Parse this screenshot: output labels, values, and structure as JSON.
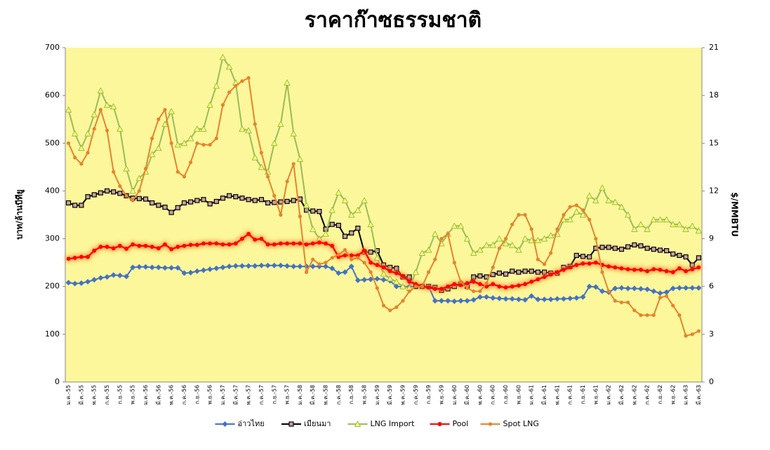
{
  "chart_data": {
    "type": "line",
    "title": "ราคาก๊าซธรรมชาติ",
    "y_label": "บาท/ล้านบีทียู",
    "y2_label": "$/MMBTU",
    "categories": [
      "ม.ค.-55",
      null,
      "มี.ค.-55",
      null,
      "พ.ค.-55",
      null,
      "ก.ค.-55",
      null,
      "ก.ย.-55",
      null,
      "พ.ย.-55",
      null,
      "ม.ค.-56",
      null,
      "มี.ค.-56",
      null,
      "พ.ค.-56",
      null,
      "ก.ค.-56",
      null,
      "ก.ย.-56",
      null,
      "พ.ย.-56",
      null,
      "ม.ค.-57",
      null,
      "มี.ค.-57",
      null,
      "พ.ค.-57",
      null,
      "ก.ค.-57",
      null,
      "ก.ย.-57",
      null,
      "พ.ย.-57",
      null,
      "ม.ค.-58",
      null,
      "มี.ค.-58",
      null,
      "พ.ค.-58",
      null,
      "ก.ค.-58",
      null,
      "ก.ย.-58",
      null,
      "พ.ย.-58",
      null,
      "ม.ค.-59",
      null,
      "มี.ค.-59",
      null,
      "พ.ค.-59",
      null,
      "ก.ค.-59",
      null,
      "ก.ย.-59",
      null,
      "พ.ย.-59",
      null,
      "ม.ค.-60",
      null,
      "มี.ค.-60",
      null,
      "พ.ค.-60",
      null,
      "ก.ค.-60",
      null,
      "ก.ย.-60",
      null,
      "พ.ย.-60",
      null,
      "ม.ค.-61",
      null,
      "มี.ค.-61",
      null,
      "พ.ค.-61",
      null,
      "ก.ค.-61",
      null,
      "ก.ย.-61",
      null,
      "พ.ย.-61",
      null,
      "ม.ค.-62",
      null,
      "มี.ค.-62",
      null,
      "พ.ค.-62",
      null,
      "ก.ค.-62",
      null,
      "ก.ย.-62",
      null,
      "พ.ย.-62",
      null,
      "ม.ค.-63",
      null,
      "มี.ค.-63"
    ],
    "series": [
      {
        "name": "อ่าวไทย",
        "color": "#4472c4",
        "marker": "diamond",
        "values": [
          208,
          206,
          207,
          210,
          214,
          218,
          220,
          224,
          223,
          221,
          240,
          241,
          241,
          240,
          240,
          239,
          239,
          239,
          228,
          229,
          232,
          234,
          236,
          238,
          240,
          242,
          243,
          243,
          243,
          243,
          244,
          244,
          244,
          244,
          243,
          242,
          242,
          242,
          242,
          242,
          242,
          238,
          228,
          230,
          242,
          213,
          214,
          215,
          216,
          214,
          212,
          200,
          200,
          200,
          200,
          201,
          200,
          170,
          170,
          170,
          169,
          170,
          170,
          172,
          178,
          178,
          176,
          175,
          174,
          174,
          173,
          172,
          180,
          173,
          173,
          173,
          174,
          174,
          175,
          176,
          178,
          200,
          199,
          190,
          188,
          196,
          197,
          196,
          196,
          195,
          194,
          190,
          186,
          188,
          196,
          197,
          197,
          197,
          197
        ]
      },
      {
        "name": "เมียนมา",
        "color": "#000000",
        "marker": "square",
        "values": [
          375,
          370,
          370,
          388,
          392,
          396,
          400,
          398,
          395,
          390,
          385,
          384,
          383,
          375,
          370,
          366,
          355,
          365,
          375,
          377,
          380,
          382,
          373,
          378,
          385,
          390,
          388,
          385,
          382,
          380,
          382,
          375,
          376,
          377,
          378,
          380,
          383,
          360,
          358,
          357,
          320,
          330,
          328,
          305,
          312,
          322,
          272,
          272,
          275,
          245,
          240,
          238,
          220,
          220,
          200,
          200,
          200,
          198,
          192,
          195,
          200,
          205,
          200,
          220,
          222,
          220,
          225,
          228,
          226,
          232,
          230,
          232,
          232,
          230,
          230,
          228,
          228,
          240,
          242,
          265,
          263,
          262,
          280,
          282,
          282,
          280,
          278,
          283,
          287,
          285,
          280,
          278,
          276,
          275,
          268,
          265,
          262,
          245,
          260
        ]
      },
      {
        "name": "LNG Import",
        "color": "#9bbb59",
        "marker": "triangle",
        "axis": "y2",
        "values": [
          17.1,
          15.6,
          14.7,
          15.6,
          16.8,
          18.3,
          17.4,
          17.3,
          15.9,
          13.4,
          12.0,
          12.8,
          13.2,
          14.3,
          14.7,
          16.2,
          17.0,
          14.9,
          15.0,
          15.3,
          15.9,
          15.9,
          17.4,
          18.6,
          20.4,
          19.8,
          18.8,
          15.9,
          15.8,
          14.1,
          13.5,
          13.2,
          15.0,
          16.2,
          18.8,
          15.6,
          14.0,
          11.1,
          9.6,
          9.0,
          9.3,
          10.8,
          11.9,
          11.4,
          10.5,
          10.8,
          11.4,
          9.9,
          7.8,
          6.8,
          6.5,
          6.3,
          6.0,
          5.9,
          6.9,
          8.1,
          8.3,
          9.3,
          8.7,
          9.3,
          9.8,
          9.8,
          9.0,
          8.1,
          8.3,
          8.6,
          8.6,
          9.0,
          8.7,
          8.6,
          8.3,
          9.0,
          8.9,
          8.9,
          9.0,
          9.2,
          9.3,
          10.2,
          10.2,
          10.7,
          10.5,
          11.7,
          11.4,
          12.2,
          11.4,
          11.3,
          11.0,
          10.5,
          9.6,
          9.9,
          9.6,
          10.2,
          10.2,
          10.2,
          9.9,
          9.9,
          9.6,
          9.8,
          9.5
        ]
      },
      {
        "name": "Pool",
        "color": "#ff0000",
        "marker": "circle",
        "glow": true,
        "values": [
          258,
          260,
          262,
          262,
          275,
          283,
          283,
          280,
          285,
          279,
          288,
          285,
          285,
          283,
          280,
          288,
          278,
          283,
          285,
          287,
          287,
          290,
          290,
          290,
          288,
          288,
          290,
          300,
          310,
          298,
          300,
          288,
          288,
          290,
          290,
          290,
          290,
          288,
          290,
          292,
          290,
          285,
          262,
          265,
          265,
          265,
          275,
          250,
          245,
          240,
          232,
          228,
          222,
          210,
          205,
          200,
          198,
          195,
          195,
          200,
          205,
          203,
          207,
          210,
          205,
          200,
          205,
          200,
          198,
          200,
          202,
          205,
          210,
          215,
          220,
          225,
          230,
          235,
          240,
          245,
          248,
          248,
          250,
          245,
          242,
          240,
          238,
          236,
          235,
          235,
          232,
          236,
          235,
          232,
          230,
          238,
          232,
          236,
          240
        ]
      },
      {
        "name": "Spot LNG",
        "color": "#e6832e",
        "marker": "circle",
        "axis": "y2",
        "values": [
          15.0,
          14.1,
          13.7,
          14.4,
          15.9,
          17.1,
          15.8,
          13.2,
          12.3,
          11.7,
          11.4,
          12.0,
          13.4,
          15.3,
          16.5,
          17.1,
          15.0,
          13.2,
          12.9,
          13.8,
          15.0,
          14.9,
          14.9,
          15.3,
          17.4,
          18.2,
          18.6,
          18.9,
          19.1,
          16.2,
          14.4,
          12.9,
          11.7,
          10.5,
          12.6,
          13.7,
          10.4,
          6.9,
          7.7,
          7.4,
          7.5,
          7.8,
          8.0,
          8.3,
          7.7,
          7.8,
          7.5,
          6.9,
          5.9,
          4.8,
          4.5,
          4.7,
          5.1,
          5.7,
          6.0,
          6.0,
          6.9,
          7.7,
          9.0,
          9.3,
          7.5,
          6.3,
          5.9,
          5.7,
          5.7,
          6.2,
          7.2,
          8.4,
          9.0,
          9.9,
          10.5,
          10.5,
          9.6,
          7.7,
          7.4,
          8.1,
          9.6,
          10.5,
          11.0,
          11.1,
          10.8,
          10.2,
          9.0,
          6.9,
          5.7,
          5.1,
          5.0,
          5.0,
          4.5,
          4.2,
          4.2,
          4.2,
          5.3,
          5.4,
          4.8,
          4.2,
          2.9,
          3.0,
          3.2
        ]
      }
    ],
    "ylim": [
      0,
      700
    ],
    "yticks": [
      0,
      100,
      200,
      300,
      400,
      500,
      600,
      700
    ],
    "y2lim": [
      0,
      21
    ],
    "y2ticks": [
      0,
      3,
      6,
      9,
      12,
      15,
      18,
      21
    ],
    "plot_background": "#fbf79a",
    "legend": "bottom"
  }
}
